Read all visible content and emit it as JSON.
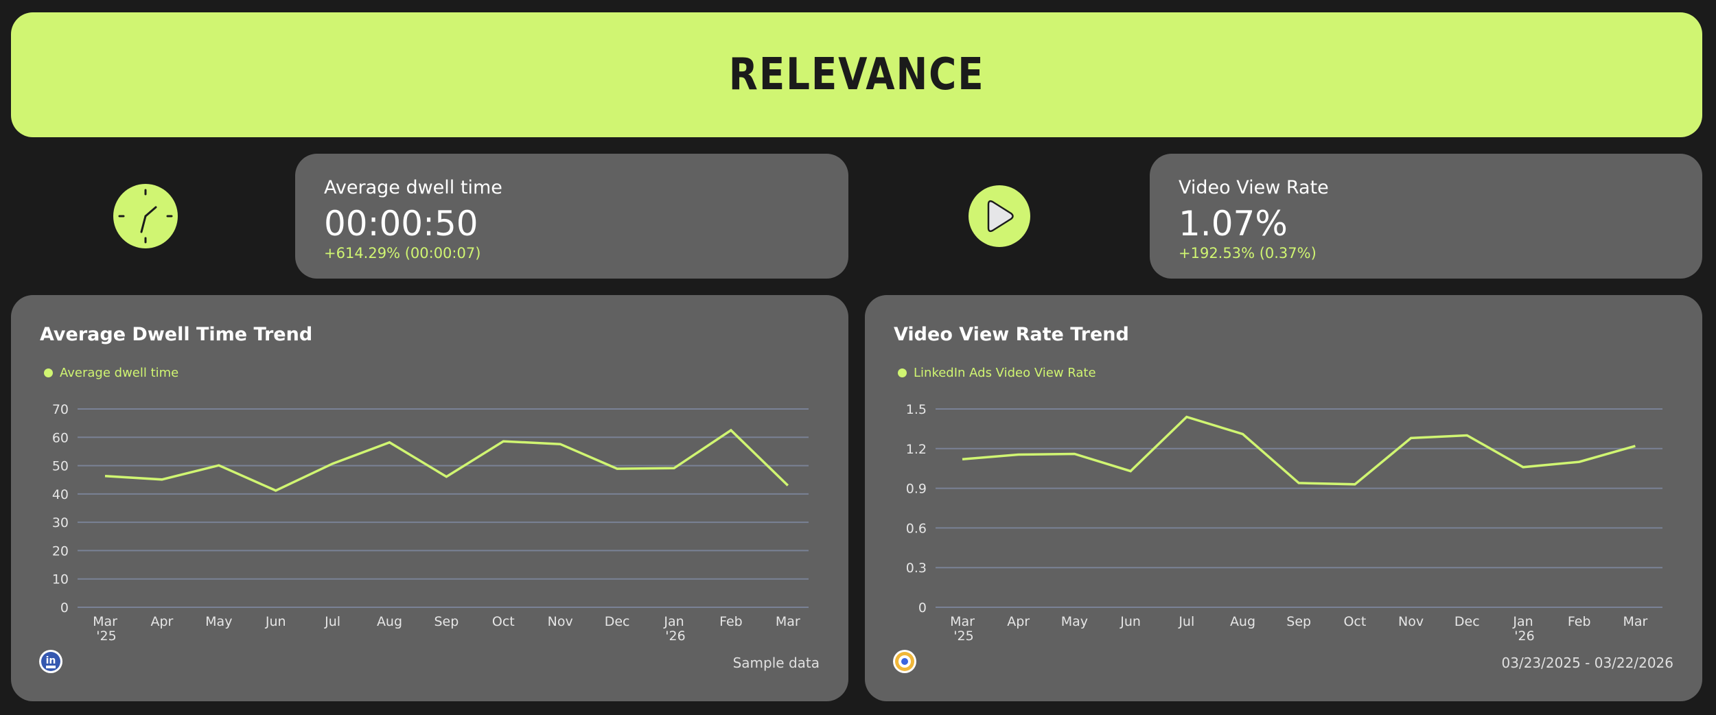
{
  "header": {
    "title": "RELEVANCE"
  },
  "kpis": [
    {
      "icon": "clock-icon",
      "label": "Average dwell time",
      "value": "00:00:50",
      "delta": "+614.29% (00:00:07)"
    },
    {
      "icon": "play-icon",
      "label": "Video View Rate",
      "value": "1.07%",
      "delta": "+192.53% (0.37%)"
    }
  ],
  "charts": [
    {
      "title": "Average Dwell Time Trend",
      "legend": "Average dwell time",
      "source_icon": "linkedin-icon",
      "footer": "Sample data"
    },
    {
      "title": "Video View Rate Trend",
      "legend": "LinkedIn Ads Video View Rate",
      "source_icon": "target-icon",
      "footer": "03/23/2025 - 03/22/2026"
    }
  ],
  "colors": {
    "accent": "#d0f572",
    "background": "#1b1b1b",
    "card": "#616161",
    "gridline": "#7a8296"
  },
  "chart_data": [
    {
      "type": "line",
      "title": "Average Dwell Time Trend",
      "xlabel": "",
      "ylabel": "",
      "categories": [
        "Mar '25",
        "Apr",
        "May",
        "Jun",
        "Jul",
        "Aug",
        "Sep",
        "Oct",
        "Nov",
        "Dec",
        "Jan '26",
        "Feb",
        "Mar"
      ],
      "series": [
        {
          "name": "Average dwell time",
          "values": [
            46.3,
            45.1,
            50.1,
            41.2,
            50.7,
            58.2,
            46.1,
            58.6,
            57.6,
            48.9,
            49.1,
            62.5,
            43.0
          ]
        }
      ],
      "yticks": [
        0,
        10,
        20,
        30,
        40,
        50,
        60,
        70
      ],
      "ylim": [
        0,
        70
      ],
      "grid": true,
      "legend_position": "top-left"
    },
    {
      "type": "line",
      "title": "Video View Rate Trend",
      "xlabel": "",
      "ylabel": "",
      "categories": [
        "Mar '25",
        "Apr",
        "May",
        "Jun",
        "Jul",
        "Aug",
        "Sep",
        "Oct",
        "Nov",
        "Dec",
        "Jan '26",
        "Feb",
        "Mar"
      ],
      "series": [
        {
          "name": "LinkedIn Ads Video View Rate",
          "values": [
            1.12,
            1.155,
            1.16,
            1.03,
            1.44,
            1.31,
            0.94,
            0.93,
            1.28,
            1.3,
            1.06,
            1.1,
            1.22
          ]
        }
      ],
      "yticks": [
        0,
        0.3,
        0.6,
        0.9,
        1.2,
        1.5
      ],
      "ylim": [
        0,
        1.5
      ],
      "grid": true,
      "legend_position": "top-left"
    }
  ]
}
